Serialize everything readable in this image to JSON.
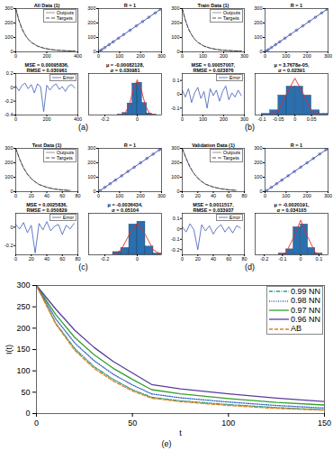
{
  "chart_data": [
    {
      "type": "line",
      "title": "All Data (1)",
      "caption": "(a)",
      "x": [
        0,
        20,
        40,
        60,
        80,
        100,
        140,
        180,
        220,
        260,
        300,
        340,
        380
      ],
      "series": [
        {
          "name": "Outputs",
          "color": "#7f7f7f",
          "line_style": "solid",
          "values": [
            300,
            220,
            160,
            118,
            88,
            66,
            40,
            26,
            17,
            12,
            9,
            7,
            6
          ]
        },
        {
          "name": "Targets",
          "color": "#2b2b2b",
          "line_style": "dashed",
          "values": [
            300,
            220,
            160,
            118,
            88,
            66,
            40,
            26,
            17,
            12,
            9,
            7,
            6
          ]
        }
      ],
      "xlim": [
        0,
        400
      ],
      "xticks": [
        0,
        200,
        400
      ],
      "ylim": [
        0,
        300
      ],
      "yticks": [
        0,
        100,
        200,
        300
      ],
      "legend": "top-right"
    },
    {
      "type": "scatter",
      "title": "R = 1",
      "series": [
        {
          "type": "scatter",
          "color": "#1f2fa0",
          "marker": "circle",
          "x": [
            5,
            15,
            30,
            50,
            70,
            95,
            120,
            150,
            180,
            210,
            240,
            270,
            295
          ],
          "values": [
            5,
            15,
            30,
            50,
            70,
            95,
            120,
            150,
            180,
            210,
            240,
            270,
            295
          ]
        },
        {
          "type": "line",
          "color": "#1f2fa0",
          "line_style": "solid",
          "x": [
            0,
            300
          ],
          "values": [
            0,
            300
          ]
        }
      ],
      "xlim": [
        0,
        300
      ],
      "xticks": [
        0,
        100,
        200,
        300
      ],
      "ylim": [
        0,
        300
      ],
      "yticks": [
        0,
        100,
        200,
        300
      ]
    },
    {
      "type": "line",
      "title": "MSE = 0.00095836, RMSE = 0.030961",
      "x": [
        0,
        20,
        40,
        60,
        80,
        100,
        120,
        140,
        160,
        180,
        200,
        220,
        240,
        260,
        280,
        300,
        320,
        340,
        360,
        380
      ],
      "series": [
        {
          "name": "Error",
          "color": "#3d5ab8",
          "line_style": "solid",
          "values": [
            0.02,
            -0.05,
            0.03,
            0.06,
            -0.02,
            0.04,
            -0.08,
            0.05,
            0.01,
            -0.35,
            0.03,
            -0.04,
            0.02,
            0.05,
            -0.03,
            0.01,
            -0.06,
            0.02,
            0.04,
            -0.01
          ]
        }
      ],
      "xlim": [
        0,
        400
      ],
      "xticks": [
        0,
        200,
        400
      ],
      "ylim": [
        -0.4,
        0.2
      ],
      "yticks": [
        -0.4,
        -0.2,
        0,
        0.2
      ],
      "legend": "top-right"
    },
    {
      "type": "histogram",
      "title": "μ = -0.00082128, σ = 0.030981",
      "bins": [
        -0.12,
        -0.09,
        -0.06,
        -0.03,
        0,
        0.03,
        0.06,
        0.09,
        0.12
      ],
      "counts": [
        1,
        5,
        28,
        76,
        78,
        29,
        4,
        1
      ],
      "color": "#2a6fb0",
      "curve": {
        "color": "#e8282b",
        "x": [
          -0.1,
          -0.075,
          -0.05,
          -0.025,
          0,
          0.025,
          0.05,
          0.075,
          0.1
        ],
        "values": [
          0.5,
          4.5,
          23,
          61,
          85,
          61,
          23,
          4.5,
          0.5
        ]
      },
      "xlim": [
        -0.3,
        0.15
      ],
      "xticks": [
        -0.2,
        0
      ],
      "ylim": [
        0,
        100
      ],
      "tick_labels": "x"
    },
    {
      "type": "line",
      "title": "Train Data (1)",
      "caption": "(b)",
      "x": [
        0,
        15,
        30,
        45,
        60,
        75,
        105,
        135,
        165,
        195,
        225,
        255,
        285
      ],
      "series": [
        {
          "name": "Outputs",
          "color": "#7f7f7f",
          "line_style": "solid",
          "values": [
            300,
            220,
            160,
            118,
            88,
            66,
            40,
            26,
            17,
            12,
            9,
            7,
            6
          ]
        },
        {
          "name": "Targets",
          "color": "#2b2b2b",
          "line_style": "dashed",
          "values": [
            300,
            220,
            160,
            118,
            88,
            66,
            40,
            26,
            17,
            12,
            9,
            7,
            6
          ]
        }
      ],
      "xlim": [
        0,
        300
      ],
      "xticks": [
        0,
        100,
        200,
        300
      ],
      "ylim": [
        0,
        300
      ],
      "yticks": [
        0,
        100,
        200,
        300
      ],
      "legend": "top-right"
    },
    {
      "type": "scatter",
      "title": "R = 1",
      "series": [
        {
          "type": "scatter",
          "color": "#1f2fa0",
          "marker": "circle",
          "x": [
            5,
            15,
            30,
            50,
            70,
            95,
            120,
            150,
            180,
            210,
            240,
            270,
            295
          ],
          "values": [
            5,
            15,
            30,
            50,
            70,
            95,
            120,
            150,
            180,
            210,
            240,
            270,
            295
          ]
        },
        {
          "type": "line",
          "color": "#1f2fa0",
          "line_style": "solid",
          "x": [
            0,
            300
          ],
          "values": [
            0,
            300
          ]
        }
      ],
      "xlim": [
        0,
        300
      ],
      "xticks": [
        0,
        100,
        200,
        300
      ],
      "ylim": [
        0,
        300
      ],
      "yticks": [
        0,
        100,
        200,
        300
      ]
    },
    {
      "type": "line",
      "title": "MSE = 0.00057007, RMSE = 0.023876",
      "x": [
        0,
        15,
        30,
        45,
        60,
        75,
        90,
        105,
        120,
        135,
        150,
        165,
        180,
        195,
        210,
        225,
        240,
        255,
        270,
        285
      ],
      "series": [
        {
          "name": "Error",
          "color": "#3d5ab8",
          "line_style": "solid",
          "values": [
            0.03,
            -0.02,
            0.04,
            -0.06,
            0.01,
            0.05,
            -0.03,
            0.02,
            -0.1,
            0.04,
            -0.01,
            0.03,
            -0.05,
            0.02,
            0.06,
            -0.04,
            0.01,
            -0.02,
            0.03,
            -0.01
          ]
        }
      ],
      "xlim": [
        0,
        300
      ],
      "xticks": [
        0,
        100,
        200,
        300
      ],
      "ylim": [
        -0.15,
        0.15
      ],
      "yticks": [
        -0.1,
        0,
        0.1
      ],
      "legend": "top-right"
    },
    {
      "type": "histogram",
      "title": "μ = 3.7678e-05, σ = 0.02391",
      "bins": [
        -0.1,
        -0.075,
        -0.05,
        -0.025,
        0,
        0.025,
        0.05,
        0.075,
        0.1
      ],
      "counts": [
        2,
        8,
        33,
        48,
        48,
        33,
        8,
        2
      ],
      "color": "#2a6fb0",
      "curve": {
        "color": "#e8282b",
        "x": [
          -0.075,
          -0.05,
          -0.025,
          0,
          0.025,
          0.05,
          0.075
        ],
        "values": [
          0.5,
          7,
          36,
          62,
          36,
          7,
          0.5
        ]
      },
      "xlim": [
        -0.12,
        0.1
      ],
      "xticks": [
        -0.1,
        -0.05,
        0,
        0.05
      ],
      "ylim": [
        0,
        70
      ],
      "tick_labels": "x"
    },
    {
      "type": "line",
      "title": "Test Data (1)",
      "caption": "(c)",
      "x": [
        0,
        5,
        10,
        15,
        20,
        25,
        30,
        40,
        50,
        60,
        70
      ],
      "series": [
        {
          "name": "Outputs",
          "color": "#7f7f7f",
          "line_style": "solid",
          "values": [
            300,
            225,
            165,
            122,
            90,
            68,
            50,
            30,
            18,
            12,
            8
          ]
        },
        {
          "name": "Targets",
          "color": "#2b2b2b",
          "line_style": "dashed",
          "values": [
            300,
            225,
            165,
            122,
            90,
            68,
            50,
            30,
            18,
            12,
            8
          ]
        }
      ],
      "xlim": [
        0,
        80
      ],
      "xticks": [
        0,
        20,
        40,
        60,
        80
      ],
      "ylim": [
        0,
        300
      ],
      "yticks": [
        0,
        100,
        200,
        300
      ],
      "legend": "top-right"
    },
    {
      "type": "scatter",
      "title": "R = 1",
      "series": [
        {
          "type": "scatter",
          "color": "#1f2fa0",
          "marker": "circle",
          "x": [
            8,
            30,
            55,
            80,
            110,
            140,
            170,
            200,
            230,
            260,
            290
          ],
          "values": [
            8,
            30,
            55,
            80,
            110,
            140,
            170,
            200,
            230,
            260,
            290
          ]
        },
        {
          "type": "line",
          "color": "#1f2fa0",
          "line_style": "solid",
          "x": [
            0,
            300
          ],
          "values": [
            0,
            300
          ]
        }
      ],
      "xlim": [
        0,
        300
      ],
      "xticks": [
        0,
        100,
        200,
        300
      ],
      "ylim": [
        0,
        300
      ],
      "yticks": [
        0,
        100,
        200,
        300
      ]
    },
    {
      "type": "line",
      "title": "MSE = 0.0025836, RMSE = 0.050829",
      "x": [
        0,
        5,
        10,
        15,
        20,
        25,
        30,
        35,
        40,
        45,
        50,
        55,
        60,
        65,
        70,
        75
      ],
      "series": [
        {
          "name": "Error",
          "color": "#3d5ab8",
          "line_style": "solid",
          "values": [
            0.03,
            -0.02,
            0.05,
            -0.06,
            0.02,
            -0.28,
            0.04,
            -0.03,
            0.06,
            -0.04,
            0.01,
            0.03,
            -0.08,
            0.02,
            -0.02,
            0.04
          ]
        }
      ],
      "xlim": [
        0,
        80
      ],
      "xticks": [
        0,
        20,
        40,
        60,
        80
      ],
      "ylim": [
        -0.3,
        0.15
      ],
      "yticks": [
        -0.2,
        0
      ],
      "legend": "top-right"
    },
    {
      "type": "histogram",
      "title": "μ = -0.0036434, σ = 0.05104",
      "bins": [
        -0.15,
        -0.1,
        -0.05,
        0,
        0.05,
        0.1,
        0.15
      ],
      "counts": [
        2,
        5,
        22,
        24,
        6,
        1
      ],
      "color": "#2a6fb0",
      "curve": {
        "color": "#e8282b",
        "x": [
          -0.15,
          -0.1,
          -0.05,
          0,
          0.05,
          0.1,
          0.15
        ],
        "values": [
          0.3,
          3.4,
          14.5,
          23,
          14.5,
          3.4,
          0.3
        ]
      },
      "xlim": [
        -0.3,
        0.15
      ],
      "xticks": [
        -0.2,
        0
      ],
      "ylim": [
        0,
        30
      ],
      "tick_labels": "x"
    },
    {
      "type": "line",
      "title": "Validation Data (1)",
      "caption": "(d)",
      "x": [
        0,
        5,
        10,
        15,
        20,
        25,
        30,
        40,
        50,
        60,
        70
      ],
      "series": [
        {
          "name": "Outputs",
          "color": "#7f7f7f",
          "line_style": "solid",
          "values": [
            300,
            230,
            170,
            126,
            94,
            70,
            52,
            32,
            20,
            13,
            9
          ]
        },
        {
          "name": "Targets",
          "color": "#2b2b2b",
          "line_style": "dashed",
          "values": [
            300,
            230,
            170,
            126,
            94,
            70,
            52,
            32,
            20,
            13,
            9
          ]
        }
      ],
      "xlim": [
        0,
        80
      ],
      "xticks": [
        0,
        20,
        40,
        60,
        80
      ],
      "ylim": [
        0,
        300
      ],
      "yticks": [
        0,
        100,
        200,
        300
      ],
      "legend": "top-right"
    },
    {
      "type": "scatter",
      "title": "R = 1",
      "series": [
        {
          "type": "scatter",
          "color": "#1f2fa0",
          "marker": "circle",
          "x": [
            8,
            30,
            55,
            80,
            110,
            140,
            170,
            200,
            230,
            260,
            290
          ],
          "values": [
            8,
            30,
            55,
            80,
            110,
            140,
            170,
            200,
            230,
            260,
            290
          ]
        },
        {
          "type": "line",
          "color": "#1f2fa0",
          "line_style": "solid",
          "x": [
            0,
            300
          ],
          "values": [
            0,
            300
          ]
        }
      ],
      "xlim": [
        0,
        300
      ],
      "xticks": [
        0,
        100,
        200,
        300
      ],
      "ylim": [
        0,
        300
      ],
      "yticks": [
        0,
        100,
        200,
        300
      ]
    },
    {
      "type": "line",
      "title": "MSE = 0.0011517, RMSE = 0.033937",
      "x": [
        0,
        5,
        10,
        15,
        20,
        25,
        30,
        35,
        40,
        45,
        50,
        55,
        60,
        65,
        70,
        75
      ],
      "series": [
        {
          "name": "Error",
          "color": "#3d5ab8",
          "line_style": "solid",
          "values": [
            0.02,
            -0.03,
            0.05,
            -0.01,
            -0.2,
            0.04,
            -0.02,
            0.03,
            -0.05,
            0.01,
            0.04,
            -0.03,
            0.02,
            -0.04,
            0.03,
            0.01
          ]
        }
      ],
      "xlim": [
        0,
        80
      ],
      "xticks": [
        0,
        20,
        40,
        60,
        80
      ],
      "ylim": [
        -0.25,
        0.15
      ],
      "yticks": [
        -0.2,
        -0.1,
        0,
        0.1
      ],
      "legend": "top-right"
    },
    {
      "type": "histogram",
      "title": "μ = -0.0020191, σ = 0.034105",
      "bins": [
        -0.12,
        -0.08,
        -0.04,
        0,
        0.04,
        0.08,
        0.12
      ],
      "counts": [
        1,
        4,
        20,
        22,
        5,
        1
      ],
      "color": "#2a6fb0",
      "curve": {
        "color": "#e8282b",
        "x": [
          -0.12,
          -0.08,
          -0.04,
          0,
          0.04,
          0.08,
          0.12
        ],
        "values": [
          0.05,
          1.6,
          12.5,
          25,
          12.5,
          1.6,
          0.05
        ]
      },
      "xlim": [
        -0.25,
        0.15
      ],
      "xticks": [
        -0.2,
        -0.1,
        0,
        0.1
      ],
      "ylim": [
        0,
        30
      ],
      "tick_labels": "x"
    },
    {
      "type": "line",
      "caption": "(e)",
      "xlabel": "t",
      "ylabel": "I(t)",
      "x": [
        0,
        10,
        20,
        30,
        40,
        50,
        60,
        75,
        100,
        125,
        150
      ],
      "series": [
        {
          "name": "0.99 NN",
          "color": "#2a9d8f",
          "line_style": "dashdot",
          "values": [
            300,
            212,
            152,
            110,
            80,
            56,
            38,
            30,
            21,
            14,
            9
          ]
        },
        {
          "name": "0.98 NN",
          "color": "#3060c0",
          "line_style": "dotted",
          "values": [
            300,
            222,
            165,
            124,
            92,
            67,
            46,
            37,
            27,
            19,
            13
          ]
        },
        {
          "name": "0.97 NN",
          "color": "#33a02c",
          "line_style": "solid",
          "values": [
            300,
            232,
            178,
            138,
            106,
            80,
            56,
            46,
            35,
            26,
            20
          ]
        },
        {
          "name": "0.96 NN",
          "color": "#5b3c9c",
          "line_style": "solid",
          "values": [
            300,
            245,
            195,
            155,
            122,
            95,
            68,
            58,
            46,
            36,
            28
          ]
        },
        {
          "name": "AB",
          "color": "#e08020",
          "line_style": "dashed",
          "values": [
            300,
            210,
            148,
            106,
            76,
            53,
            36,
            28,
            19,
            12,
            8
          ]
        }
      ],
      "xlim": [
        0,
        150
      ],
      "xticks": [
        0,
        50,
        100,
        150
      ],
      "ylim": [
        0,
        300
      ],
      "yticks": [
        0,
        50,
        100,
        150,
        200,
        250,
        300
      ],
      "legend": "top-right"
    }
  ]
}
